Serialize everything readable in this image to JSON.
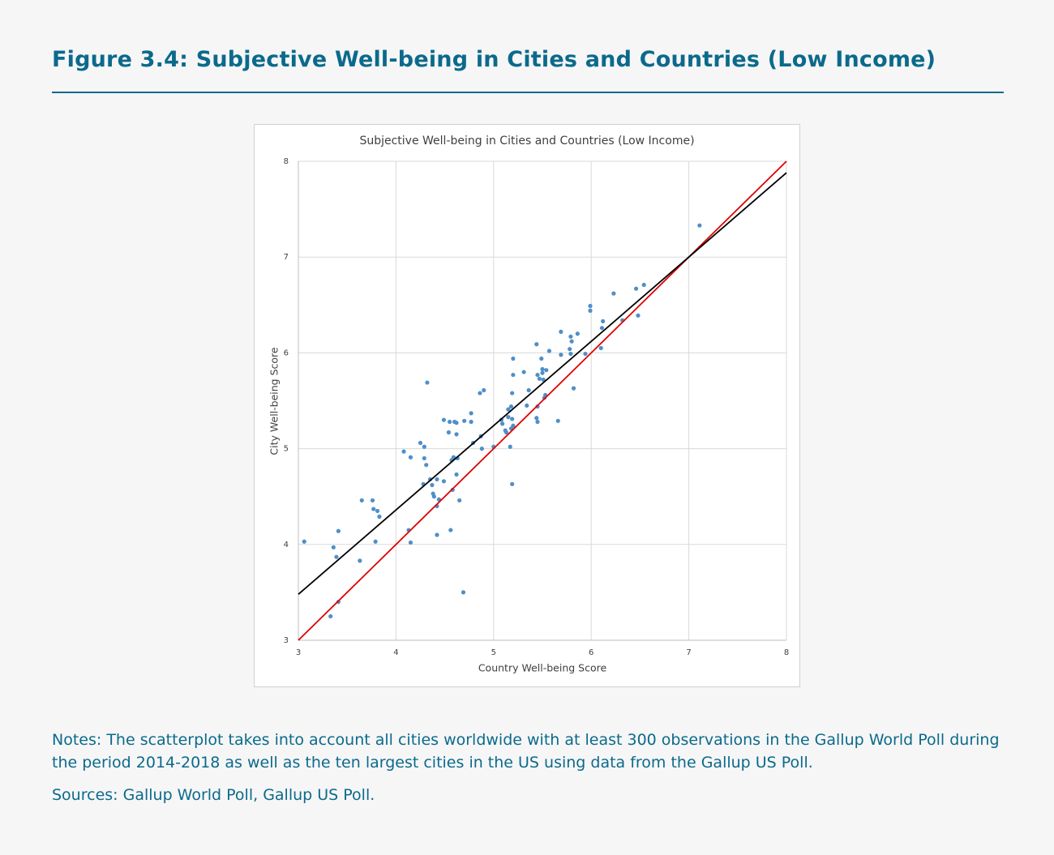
{
  "figure_title": "Figure 3.4: Subjective Well-being in Cities and Countries (Low Income)",
  "notes": "Notes: The scatterplot takes into account all cities worldwide with at least 300 observations in the Gallup World Poll during the period 2014-2018 as well as the ten largest cities in the US using data from the Gallup US Poll.",
  "sources": "Sources: Gallup World Poll, Gallup US Poll.",
  "chart_data": {
    "type": "scatter",
    "title": "Subjective Well-being in Cities and Countries (Low Income)",
    "x_label": "Country Well-being Score",
    "y_label": "City Well-being Score",
    "xlim": [
      3,
      8
    ],
    "ylim": [
      3,
      8
    ],
    "xticks": [
      3,
      4,
      5,
      6,
      7,
      8
    ],
    "yticks": [
      3,
      4,
      5,
      6,
      7,
      8
    ],
    "grid": true,
    "color": "#4f8fc8",
    "x": [
      3.06,
      3.36,
      3.39,
      3.41,
      3.41,
      3.33,
      3.63,
      3.65,
      3.76,
      3.77,
      3.81,
      3.83,
      3.79,
      4.08,
      4.15,
      4.13,
      4.15,
      4.25,
      4.29,
      4.29,
      4.31,
      4.32,
      4.28,
      4.35,
      4.37,
      4.38,
      4.39,
      4.42,
      4.42,
      4.44,
      4.42,
      4.49,
      4.49,
      4.55,
      4.6,
      4.62,
      4.54,
      4.62,
      4.57,
      4.59,
      4.63,
      4.56,
      4.58,
      4.62,
      4.65,
      4.69,
      4.7,
      4.77,
      4.77,
      4.79,
      4.86,
      4.9,
      4.87,
      4.88,
      5.0,
      5.08,
      5.09,
      5.12,
      5.13,
      5.15,
      5.15,
      5.17,
      5.18,
      5.19,
      5.18,
      5.2,
      5.19,
      5.2,
      5.2,
      5.19,
      5.31,
      5.34,
      5.36,
      5.44,
      5.44,
      5.45,
      5.45,
      5.45,
      5.47,
      5.49,
      5.5,
      5.5,
      5.51,
      5.52,
      5.54,
      5.57,
      5.53,
      5.66,
      5.69,
      5.69,
      5.79,
      5.8,
      5.78,
      5.79,
      5.82,
      5.86,
      5.94,
      5.99,
      5.99,
      6.11,
      6.12,
      6.1,
      6.23,
      6.32,
      6.46,
      6.48,
      6.54,
      7.11
    ],
    "values": [
      4.03,
      3.97,
      3.87,
      4.14,
      3.4,
      3.25,
      3.83,
      4.46,
      4.46,
      4.37,
      4.35,
      4.29,
      4.03,
      4.97,
      4.91,
      4.15,
      4.02,
      5.06,
      5.02,
      4.9,
      4.83,
      5.69,
      4.63,
      4.68,
      4.62,
      4.53,
      4.5,
      4.68,
      4.4,
      4.47,
      4.1,
      4.66,
      5.3,
      5.28,
      5.28,
      5.27,
      5.17,
      5.15,
      4.88,
      4.91,
      4.9,
      4.15,
      4.57,
      4.73,
      4.46,
      3.5,
      5.29,
      5.37,
      5.28,
      5.06,
      5.58,
      5.61,
      5.13,
      5.0,
      5.02,
      5.3,
      5.26,
      5.19,
      5.17,
      5.41,
      5.33,
      5.02,
      5.44,
      5.31,
      5.21,
      5.24,
      5.58,
      5.77,
      5.94,
      4.63,
      5.8,
      5.45,
      5.61,
      6.09,
      5.32,
      5.28,
      5.44,
      5.77,
      5.73,
      5.94,
      5.79,
      5.83,
      5.72,
      5.53,
      5.82,
      6.02,
      5.56,
      5.29,
      6.22,
      5.98,
      6.17,
      6.12,
      6.04,
      5.99,
      5.63,
      6.2,
      5.99,
      6.49,
      6.44,
      6.26,
      6.33,
      6.05,
      6.62,
      6.34,
      6.67,
      6.39,
      6.71,
      7.33
    ],
    "lines": [
      {
        "color": "#e00000",
        "x": [
          3,
          8
        ],
        "values": [
          3,
          8
        ]
      },
      {
        "color": "#000000",
        "x": [
          3,
          8
        ],
        "values": [
          3.48,
          7.88
        ]
      }
    ]
  }
}
